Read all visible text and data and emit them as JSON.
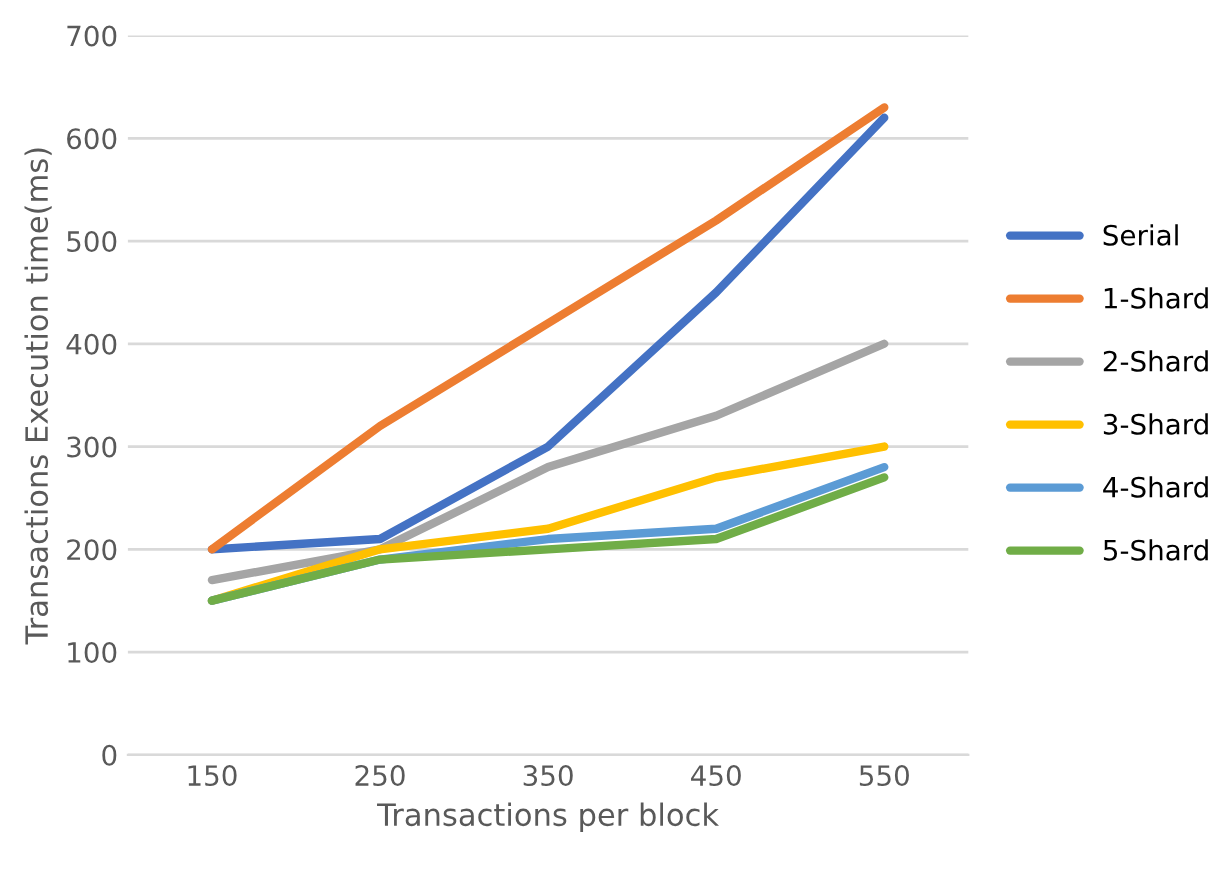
{
  "chart_data": {
    "type": "line",
    "xlabel": "Transactions per block",
    "ylabel": "Transactions Execution time(ms)",
    "categories": [
      "150",
      "250",
      "350",
      "450",
      "550"
    ],
    "series": [
      {
        "name": "Serial",
        "color": "#4472c4",
        "values": [
          200,
          210,
          300,
          450,
          620
        ]
      },
      {
        "name": "1-Shard",
        "color": "#ed7d31",
        "values": [
          200,
          320,
          420,
          520,
          630
        ]
      },
      {
        "name": "2-Shard",
        "color": "#a5a5a5",
        "values": [
          170,
          200,
          280,
          330,
          400
        ]
      },
      {
        "name": "3-Shard",
        "color": "#ffc000",
        "values": [
          150,
          200,
          220,
          270,
          300
        ]
      },
      {
        "name": "4-Shard",
        "color": "#5b9bd5",
        "values": [
          150,
          190,
          210,
          220,
          280
        ]
      },
      {
        "name": "5-Shard",
        "color": "#70ad47",
        "values": [
          150,
          190,
          200,
          210,
          270
        ]
      }
    ],
    "ylim": [
      0,
      700
    ],
    "yticks": [
      0,
      100,
      200,
      300,
      400,
      500,
      600,
      700
    ],
    "grid": "y",
    "legend": "right",
    "marker": "none",
    "line_style": "solid"
  }
}
